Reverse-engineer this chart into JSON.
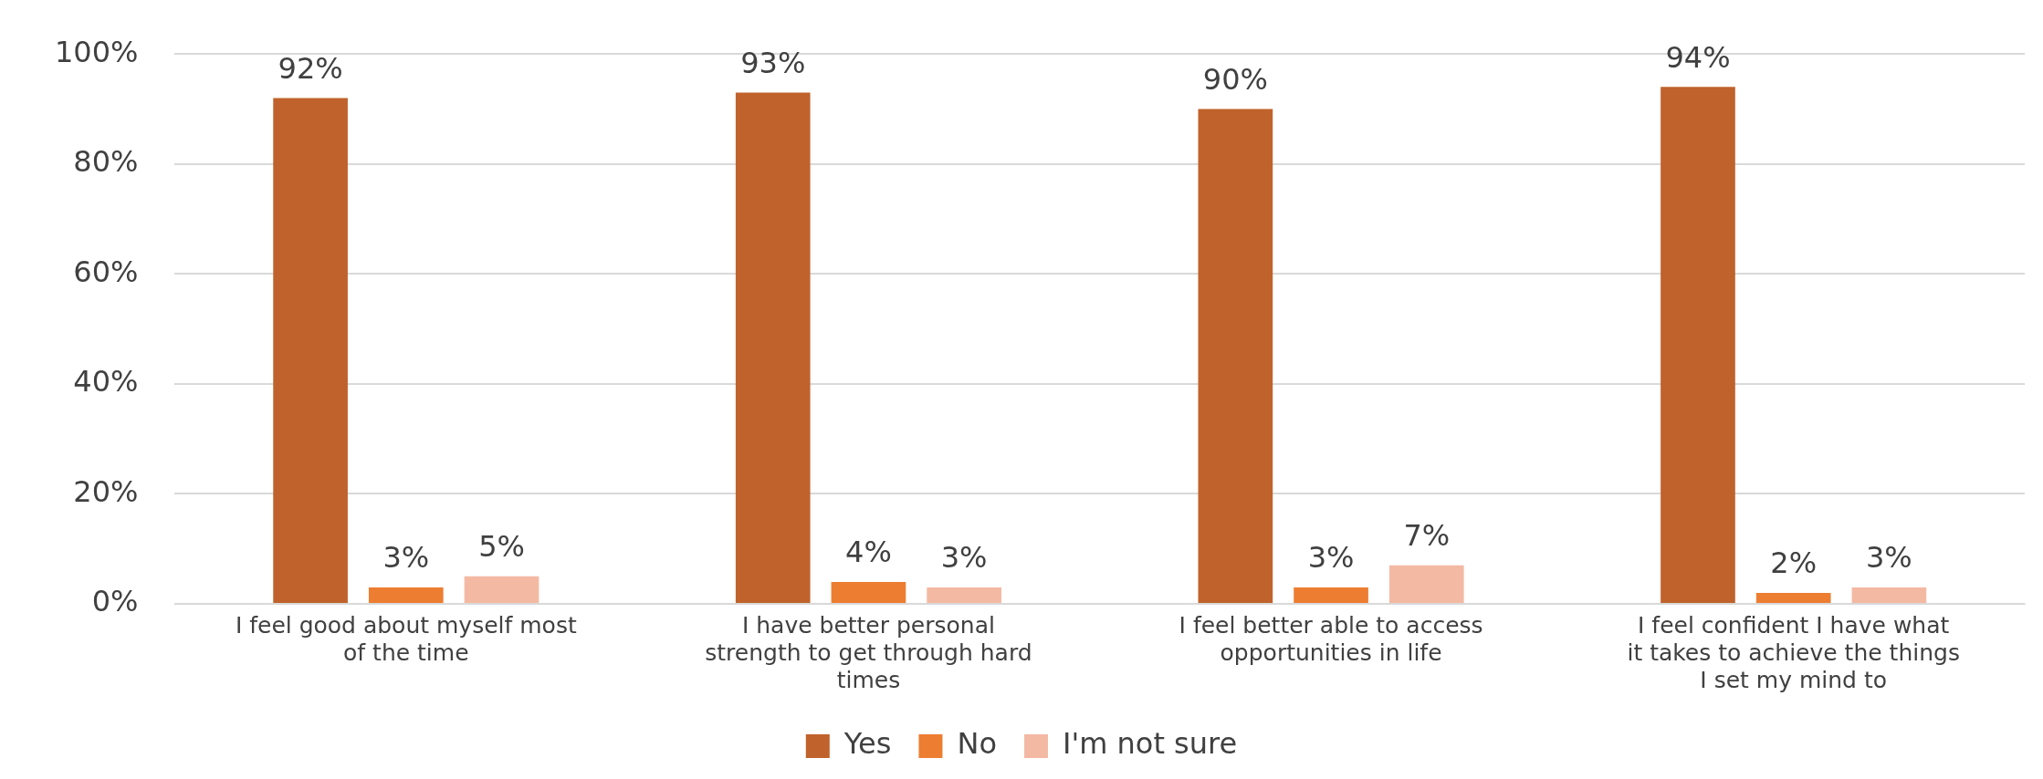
{
  "chart_data": {
    "type": "bar",
    "categories": [
      "I feel good about myself most of the time",
      "I have better personal strength to get through hard times",
      "I feel better able to access opportunities in life",
      "I feel confident I have what it takes to achieve the things I set my mind to"
    ],
    "series": [
      {
        "name": "Yes",
        "color": "#c0622b",
        "values": [
          92,
          93,
          90,
          94
        ],
        "value_labels": [
          "92%",
          "93%",
          "90%",
          "94%"
        ]
      },
      {
        "name": "No",
        "color": "#ed7d31",
        "values": [
          3,
          4,
          3,
          2
        ],
        "value_labels": [
          "3%",
          "4%",
          "3%",
          "2%"
        ]
      },
      {
        "name": "I'm not sure",
        "color": "#f4b9a3",
        "values": [
          5,
          3,
          7,
          3
        ],
        "value_labels": [
          "5%",
          "3%",
          "7%",
          "3%"
        ]
      }
    ],
    "ylim": [
      0,
      100
    ],
    "yticks": [
      {
        "value": 0,
        "label": "0%"
      },
      {
        "value": 20,
        "label": "20%"
      },
      {
        "value": 40,
        "label": "40%"
      },
      {
        "value": 60,
        "label": "60%"
      },
      {
        "value": 80,
        "label": "80%"
      },
      {
        "value": 100,
        "label": "100%"
      }
    ],
    "grid": "y",
    "legend": "bottom"
  }
}
